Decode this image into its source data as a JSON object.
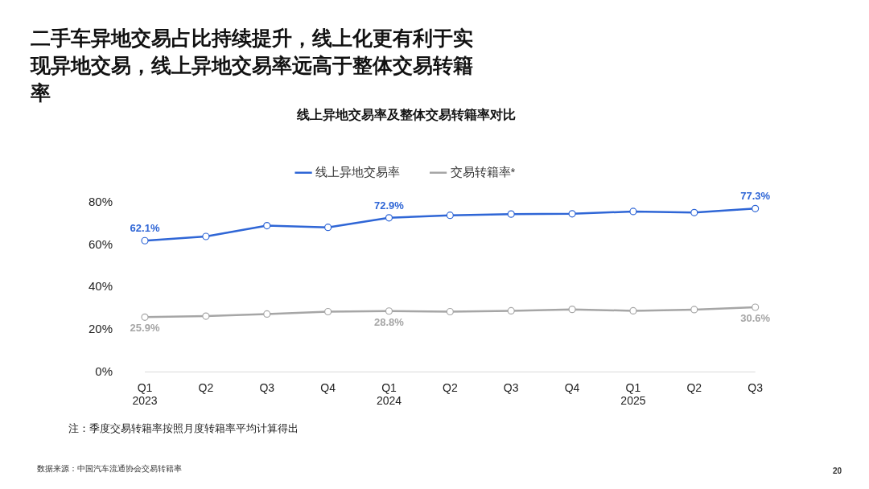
{
  "chart_data": {
    "type": "line",
    "title": "二手车异地交易占比持续提升，线上化更有利于实现异地交易，线上异地交易率远高于整体交易转籍率",
    "subtitle": "线上异地交易率及整体交易转籍率对比",
    "categories": [
      "Q1\n2023",
      "Q2",
      "Q3",
      "Q4",
      "Q1\n2024",
      "Q2",
      "Q3",
      "Q4",
      "Q1\n2025",
      "Q2",
      "Q3"
    ],
    "series": [
      {
        "name": "线上异地交易率",
        "color": "#2f66d6",
        "values": [
          62.1,
          64.1,
          69.2,
          68.4,
          72.9,
          74.1,
          74.7,
          74.8,
          75.9,
          75.4,
          77.3
        ],
        "value_labels": [
          "62.1%",
          null,
          null,
          null,
          "72.9%",
          null,
          null,
          null,
          null,
          null,
          "77.3%"
        ]
      },
      {
        "name": "交易转籍率*",
        "color": "#a6a6a6",
        "values": [
          25.9,
          26.4,
          27.4,
          28.5,
          28.8,
          28.5,
          28.9,
          29.6,
          28.9,
          29.5,
          30.6
        ],
        "value_labels": [
          "25.9%",
          null,
          null,
          null,
          "28.8%",
          null,
          null,
          null,
          null,
          null,
          "30.6%"
        ]
      }
    ],
    "ylim": [
      0,
      80
    ],
    "yticks": [
      {
        "value": 0,
        "label": "0%"
      },
      {
        "value": 20,
        "label": "20%"
      },
      {
        "value": 40,
        "label": "40%"
      },
      {
        "value": 60,
        "label": "60%"
      },
      {
        "value": 80,
        "label": "80%"
      }
    ],
    "grid": false,
    "legend": "top",
    "marker": "circle",
    "line_style": "solid",
    "annotations": [
      "注：季度交易转籍率按照月度转籍率平均计算得出",
      "数据来源：中国汽车流通协会交易转籍率",
      "20"
    ]
  }
}
